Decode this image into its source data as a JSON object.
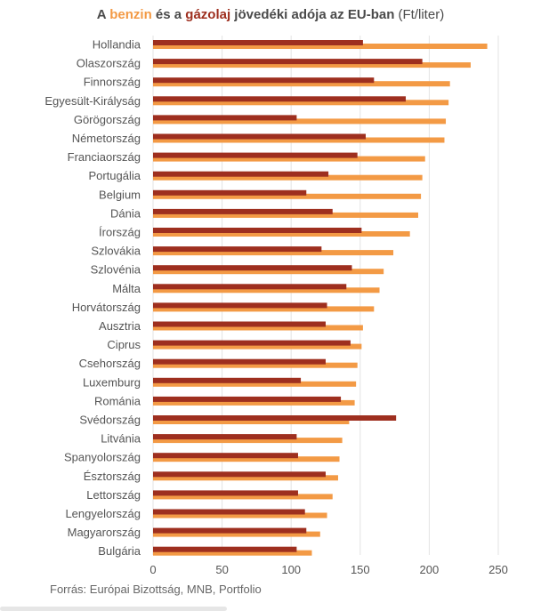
{
  "title": {
    "part1": "A ",
    "benzin": "benzin",
    "part2": " és a ",
    "gazolaj": "gázolaj",
    "part3": " jövedéki adója az EU-ban",
    "unit": " (Ft/liter)"
  },
  "source": "Forrás: Európai Bizottság, MNB, Portfolio",
  "colors": {
    "benzin": "#f39a45",
    "gazolaj": "#9e2f1f",
    "grid": "#e3e3e3",
    "text": "#555555"
  },
  "chart_data": {
    "type": "bar",
    "orientation": "horizontal",
    "categories": [
      "Hollandia",
      "Olaszország",
      "Finnország",
      "Egyesült-Királyság",
      "Görögország",
      "Németország",
      "Franciaország",
      "Portugália",
      "Belgium",
      "Dánia",
      "Írország",
      "Szlovákia",
      "Szlovénia",
      "Málta",
      "Horvátország",
      "Ausztria",
      "Ciprus",
      "Csehország",
      "Luxemburg",
      "Románia",
      "Svédország",
      "Litvánia",
      "Spanyolország",
      "Észtország",
      "Lettország",
      "Lengyelország",
      "Magyarország",
      "Bulgária"
    ],
    "series": [
      {
        "name": "gázolaj",
        "values": [
          152,
          195,
          160,
          183,
          104,
          154,
          148,
          127,
          111,
          130,
          151,
          122,
          144,
          140,
          126,
          125,
          143,
          125,
          107,
          136,
          176,
          104,
          105,
          125,
          105,
          110,
          111,
          104
        ]
      },
      {
        "name": "benzin",
        "values": [
          242,
          230,
          215,
          214,
          212,
          211,
          197,
          195,
          194,
          192,
          186,
          174,
          167,
          164,
          160,
          152,
          151,
          148,
          147,
          146,
          142,
          137,
          135,
          134,
          130,
          126,
          121,
          115
        ]
      }
    ],
    "xticks": [
      "0",
      "50",
      "100",
      "150",
      "200",
      "250"
    ],
    "xlim": [
      0,
      250
    ]
  }
}
